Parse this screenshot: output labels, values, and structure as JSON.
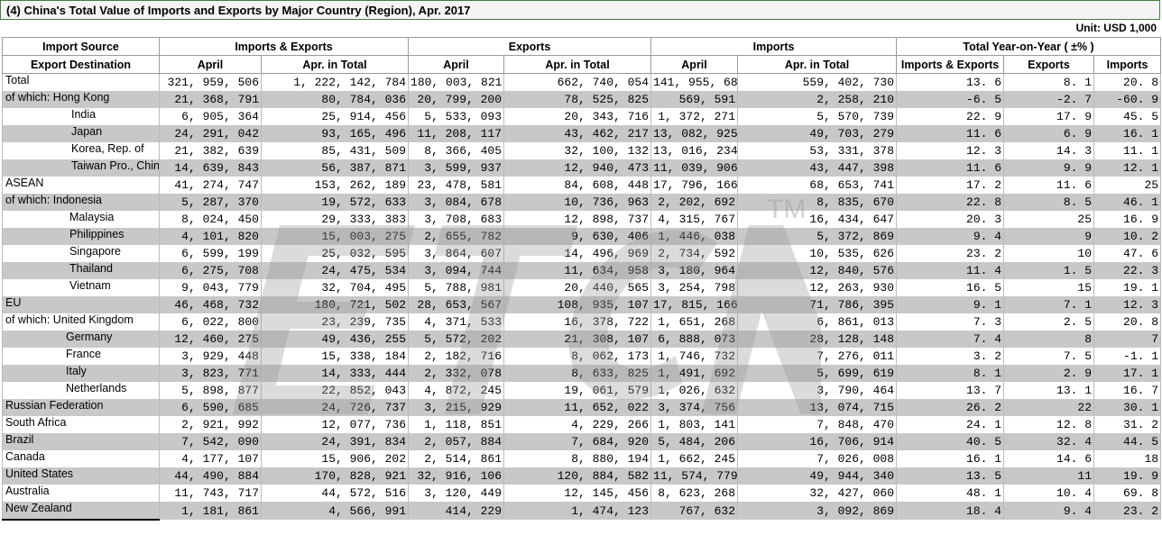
{
  "title": "(4) China's Total Value of Imports and Exports by Major Country (Region), Apr. 2017",
  "unit": "Unit: USD 1,000",
  "header": {
    "group1": "Import Source",
    "group1b": "Export Destination",
    "imports_exports": "Imports & Exports",
    "exports": "Exports",
    "imports": "Imports",
    "yoy": "Total Year-on-Year ( ±% )",
    "april": "April",
    "apr_total": "Apr. in Total",
    "yoy_ie": "Imports & Exports",
    "yoy_exp": "Exports",
    "yoy_imp": "Imports"
  },
  "watermark": {
    "text": "ETCN",
    "tm": "TM"
  },
  "rows": [
    {
      "name": "Total",
      "ie_apr": "321, 959, 506",
      "ie_tot": "1, 222, 142, 784",
      "ex_apr": "180, 003, 821",
      "ex_tot": "662, 740, 054",
      "im_apr": "141, 955, 685",
      "im_tot": "559, 402, 730",
      "y_ie": "13. 6",
      "y_ex": "8. 1",
      "y_im": "20. 8"
    },
    {
      "name": "of which: Hong Kong",
      "ie_apr": "21, 368, 791",
      "ie_tot": "80, 784, 036",
      "ex_apr": "20, 799, 200",
      "ex_tot": "78, 525, 825",
      "im_apr": "569, 591",
      "im_tot": "2, 258, 210",
      "y_ie": "-6. 5",
      "y_ex": "-2. 7",
      "y_im": "-60. 9"
    },
    {
      "name": "India",
      "ie_apr": "6, 905, 364",
      "ie_tot": "25, 914, 456",
      "ex_apr": "5, 533, 093",
      "ex_tot": "20, 343, 716",
      "im_apr": "1, 372, 271",
      "im_tot": "5, 570, 739",
      "y_ie": "22. 9",
      "y_ex": "17. 9",
      "y_im": "45. 5"
    },
    {
      "name": "Japan",
      "ie_apr": "24, 291, 042",
      "ie_tot": "93, 165, 496",
      "ex_apr": "11, 208, 117",
      "ex_tot": "43, 462, 217",
      "im_apr": "13, 082, 925",
      "im_tot": "49, 703, 279",
      "y_ie": "11. 6",
      "y_ex": "6. 9",
      "y_im": "16. 1"
    },
    {
      "name": "Korea, Rep. of",
      "ie_apr": "21, 382, 639",
      "ie_tot": "85, 431, 509",
      "ex_apr": "8, 366, 405",
      "ex_tot": "32, 100, 132",
      "im_apr": "13, 016, 234",
      "im_tot": "53, 331, 378",
      "y_ie": "12. 3",
      "y_ex": "14. 3",
      "y_im": "11. 1"
    },
    {
      "name": "Taiwan Pro., China",
      "ie_apr": "14, 639, 843",
      "ie_tot": "56, 387, 871",
      "ex_apr": "3, 599, 937",
      "ex_tot": "12, 940, 473",
      "im_apr": "11, 039, 906",
      "im_tot": "43, 447, 398",
      "y_ie": "11. 6",
      "y_ex": "9. 9",
      "y_im": "12. 1"
    },
    {
      "name": "ASEAN",
      "ie_apr": "41, 274, 747",
      "ie_tot": "153, 262, 189",
      "ex_apr": "23, 478, 581",
      "ex_tot": "84, 608, 448",
      "im_apr": "17, 796, 166",
      "im_tot": "68, 653, 741",
      "y_ie": "17. 2",
      "y_ex": "11. 6",
      "y_im": "25"
    },
    {
      "name": "of which: Indonesia",
      "ie_apr": "5, 287, 370",
      "ie_tot": "19, 572, 633",
      "ex_apr": "3, 084, 678",
      "ex_tot": "10, 736, 963",
      "im_apr": "2, 202, 692",
      "im_tot": "8, 835, 670",
      "y_ie": "22. 8",
      "y_ex": "8. 5",
      "y_im": "46. 1"
    },
    {
      "name": "Malaysia",
      "ie_apr": "8, 024, 450",
      "ie_tot": "29, 333, 383",
      "ex_apr": "3, 708, 683",
      "ex_tot": "12, 898, 737",
      "im_apr": "4, 315, 767",
      "im_tot": "16, 434, 647",
      "y_ie": "20. 3",
      "y_ex": "25",
      "y_im": "16. 9"
    },
    {
      "name": "Philippines",
      "ie_apr": "4, 101, 820",
      "ie_tot": "15, 003, 275",
      "ex_apr": "2, 655, 782",
      "ex_tot": "9, 630, 406",
      "im_apr": "1, 446, 038",
      "im_tot": "5, 372, 869",
      "y_ie": "9. 4",
      "y_ex": "9",
      "y_im": "10. 2"
    },
    {
      "name": "Singapore",
      "ie_apr": "6, 599, 199",
      "ie_tot": "25, 032, 595",
      "ex_apr": "3, 864, 607",
      "ex_tot": "14, 496, 969",
      "im_apr": "2, 734, 592",
      "im_tot": "10, 535, 626",
      "y_ie": "23. 2",
      "y_ex": "10",
      "y_im": "47. 6"
    },
    {
      "name": "Thailand",
      "ie_apr": "6, 275, 708",
      "ie_tot": "24, 475, 534",
      "ex_apr": "3, 094, 744",
      "ex_tot": "11, 634, 958",
      "im_apr": "3, 180, 964",
      "im_tot": "12, 840, 576",
      "y_ie": "11. 4",
      "y_ex": "1. 5",
      "y_im": "22. 3"
    },
    {
      "name": "Vietnam",
      "ie_apr": "9, 043, 779",
      "ie_tot": "32, 704, 495",
      "ex_apr": "5, 788, 981",
      "ex_tot": "20, 440, 565",
      "im_apr": "3, 254, 798",
      "im_tot": "12, 263, 930",
      "y_ie": "16. 5",
      "y_ex": "15",
      "y_im": "19. 1"
    },
    {
      "name": "EU",
      "ie_apr": "46, 468, 732",
      "ie_tot": "180, 721, 502",
      "ex_apr": "28, 653, 567",
      "ex_tot": "108, 935, 107",
      "im_apr": "17, 815, 166",
      "im_tot": "71, 786, 395",
      "y_ie": "9. 1",
      "y_ex": "7. 1",
      "y_im": "12. 3"
    },
    {
      "name": "of which: United Kingdom",
      "ie_apr": "6, 022, 800",
      "ie_tot": "23, 239, 735",
      "ex_apr": "4, 371, 533",
      "ex_tot": "16, 378, 722",
      "im_apr": "1, 651, 268",
      "im_tot": "6, 861, 013",
      "y_ie": "7. 3",
      "y_ex": "2. 5",
      "y_im": "20. 8"
    },
    {
      "name": "Germany",
      "ie_apr": "12, 460, 275",
      "ie_tot": "49, 436, 255",
      "ex_apr": "5, 572, 202",
      "ex_tot": "21, 308, 107",
      "im_apr": "6, 888, 073",
      "im_tot": "28, 128, 148",
      "y_ie": "7. 4",
      "y_ex": "8",
      "y_im": "7"
    },
    {
      "name": "France",
      "ie_apr": "3, 929, 448",
      "ie_tot": "15, 338, 184",
      "ex_apr": "2, 182, 716",
      "ex_tot": "8, 062, 173",
      "im_apr": "1, 746, 732",
      "im_tot": "7, 276, 011",
      "y_ie": "3. 2",
      "y_ex": "7. 5",
      "y_im": "-1. 1"
    },
    {
      "name": "Italy",
      "ie_apr": "3, 823, 771",
      "ie_tot": "14, 333, 444",
      "ex_apr": "2, 332, 078",
      "ex_tot": "8, 633, 825",
      "im_apr": "1, 491, 692",
      "im_tot": "5, 699, 619",
      "y_ie": "8. 1",
      "y_ex": "2. 9",
      "y_im": "17. 1"
    },
    {
      "name": "Netherlands",
      "ie_apr": "5, 898, 877",
      "ie_tot": "22, 852, 043",
      "ex_apr": "4, 872, 245",
      "ex_tot": "19, 061, 579",
      "im_apr": "1, 026, 632",
      "im_tot": "3, 790, 464",
      "y_ie": "13. 7",
      "y_ex": "13. 1",
      "y_im": "16. 7"
    },
    {
      "name": "Russian Federation",
      "ie_apr": "6, 590, 685",
      "ie_tot": "24, 726, 737",
      "ex_apr": "3, 215, 929",
      "ex_tot": "11, 652, 022",
      "im_apr": "3, 374, 756",
      "im_tot": "13, 074, 715",
      "y_ie": "26. 2",
      "y_ex": "22",
      "y_im": "30. 1"
    },
    {
      "name": "South Africa",
      "ie_apr": "2, 921, 992",
      "ie_tot": "12, 077, 736",
      "ex_apr": "1, 118, 851",
      "ex_tot": "4, 229, 266",
      "im_apr": "1, 803, 141",
      "im_tot": "7, 848, 470",
      "y_ie": "24. 1",
      "y_ex": "12. 8",
      "y_im": "31. 2"
    },
    {
      "name": "Brazil",
      "ie_apr": "7, 542, 090",
      "ie_tot": "24, 391, 834",
      "ex_apr": "2, 057, 884",
      "ex_tot": "7, 684, 920",
      "im_apr": "5, 484, 206",
      "im_tot": "16, 706, 914",
      "y_ie": "40. 5",
      "y_ex": "32. 4",
      "y_im": "44. 5"
    },
    {
      "name": "Canada",
      "ie_apr": "4, 177, 107",
      "ie_tot": "15, 906, 202",
      "ex_apr": "2, 514, 861",
      "ex_tot": "8, 880, 194",
      "im_apr": "1, 662, 245",
      "im_tot": "7, 026, 008",
      "y_ie": "16. 1",
      "y_ex": "14. 6",
      "y_im": "18"
    },
    {
      "name": "United States",
      "ie_apr": "44, 490, 884",
      "ie_tot": "170, 828, 921",
      "ex_apr": "32, 916, 106",
      "ex_tot": "120, 884, 582",
      "im_apr": "11, 574, 779",
      "im_tot": "49, 944, 340",
      "y_ie": "13. 5",
      "y_ex": "11",
      "y_im": "19. 9"
    },
    {
      "name": "Australia",
      "ie_apr": "11, 743, 717",
      "ie_tot": "44, 572, 516",
      "ex_apr": "3, 120, 449",
      "ex_tot": "12, 145, 456",
      "im_apr": "8, 623, 268",
      "im_tot": "32, 427, 060",
      "y_ie": "48. 1",
      "y_ex": "10. 4",
      "y_im": "69. 8"
    },
    {
      "name": "New Zealand",
      "ie_apr": "1, 181, 861",
      "ie_tot": "4, 566, 991",
      "ex_apr": "414, 229",
      "ex_tot": "1, 474, 123",
      "im_apr": "767, 632",
      "im_tot": "3, 092, 869",
      "y_ie": "18. 4",
      "y_ex": "9. 4",
      "y_im": "23. 2"
    }
  ]
}
